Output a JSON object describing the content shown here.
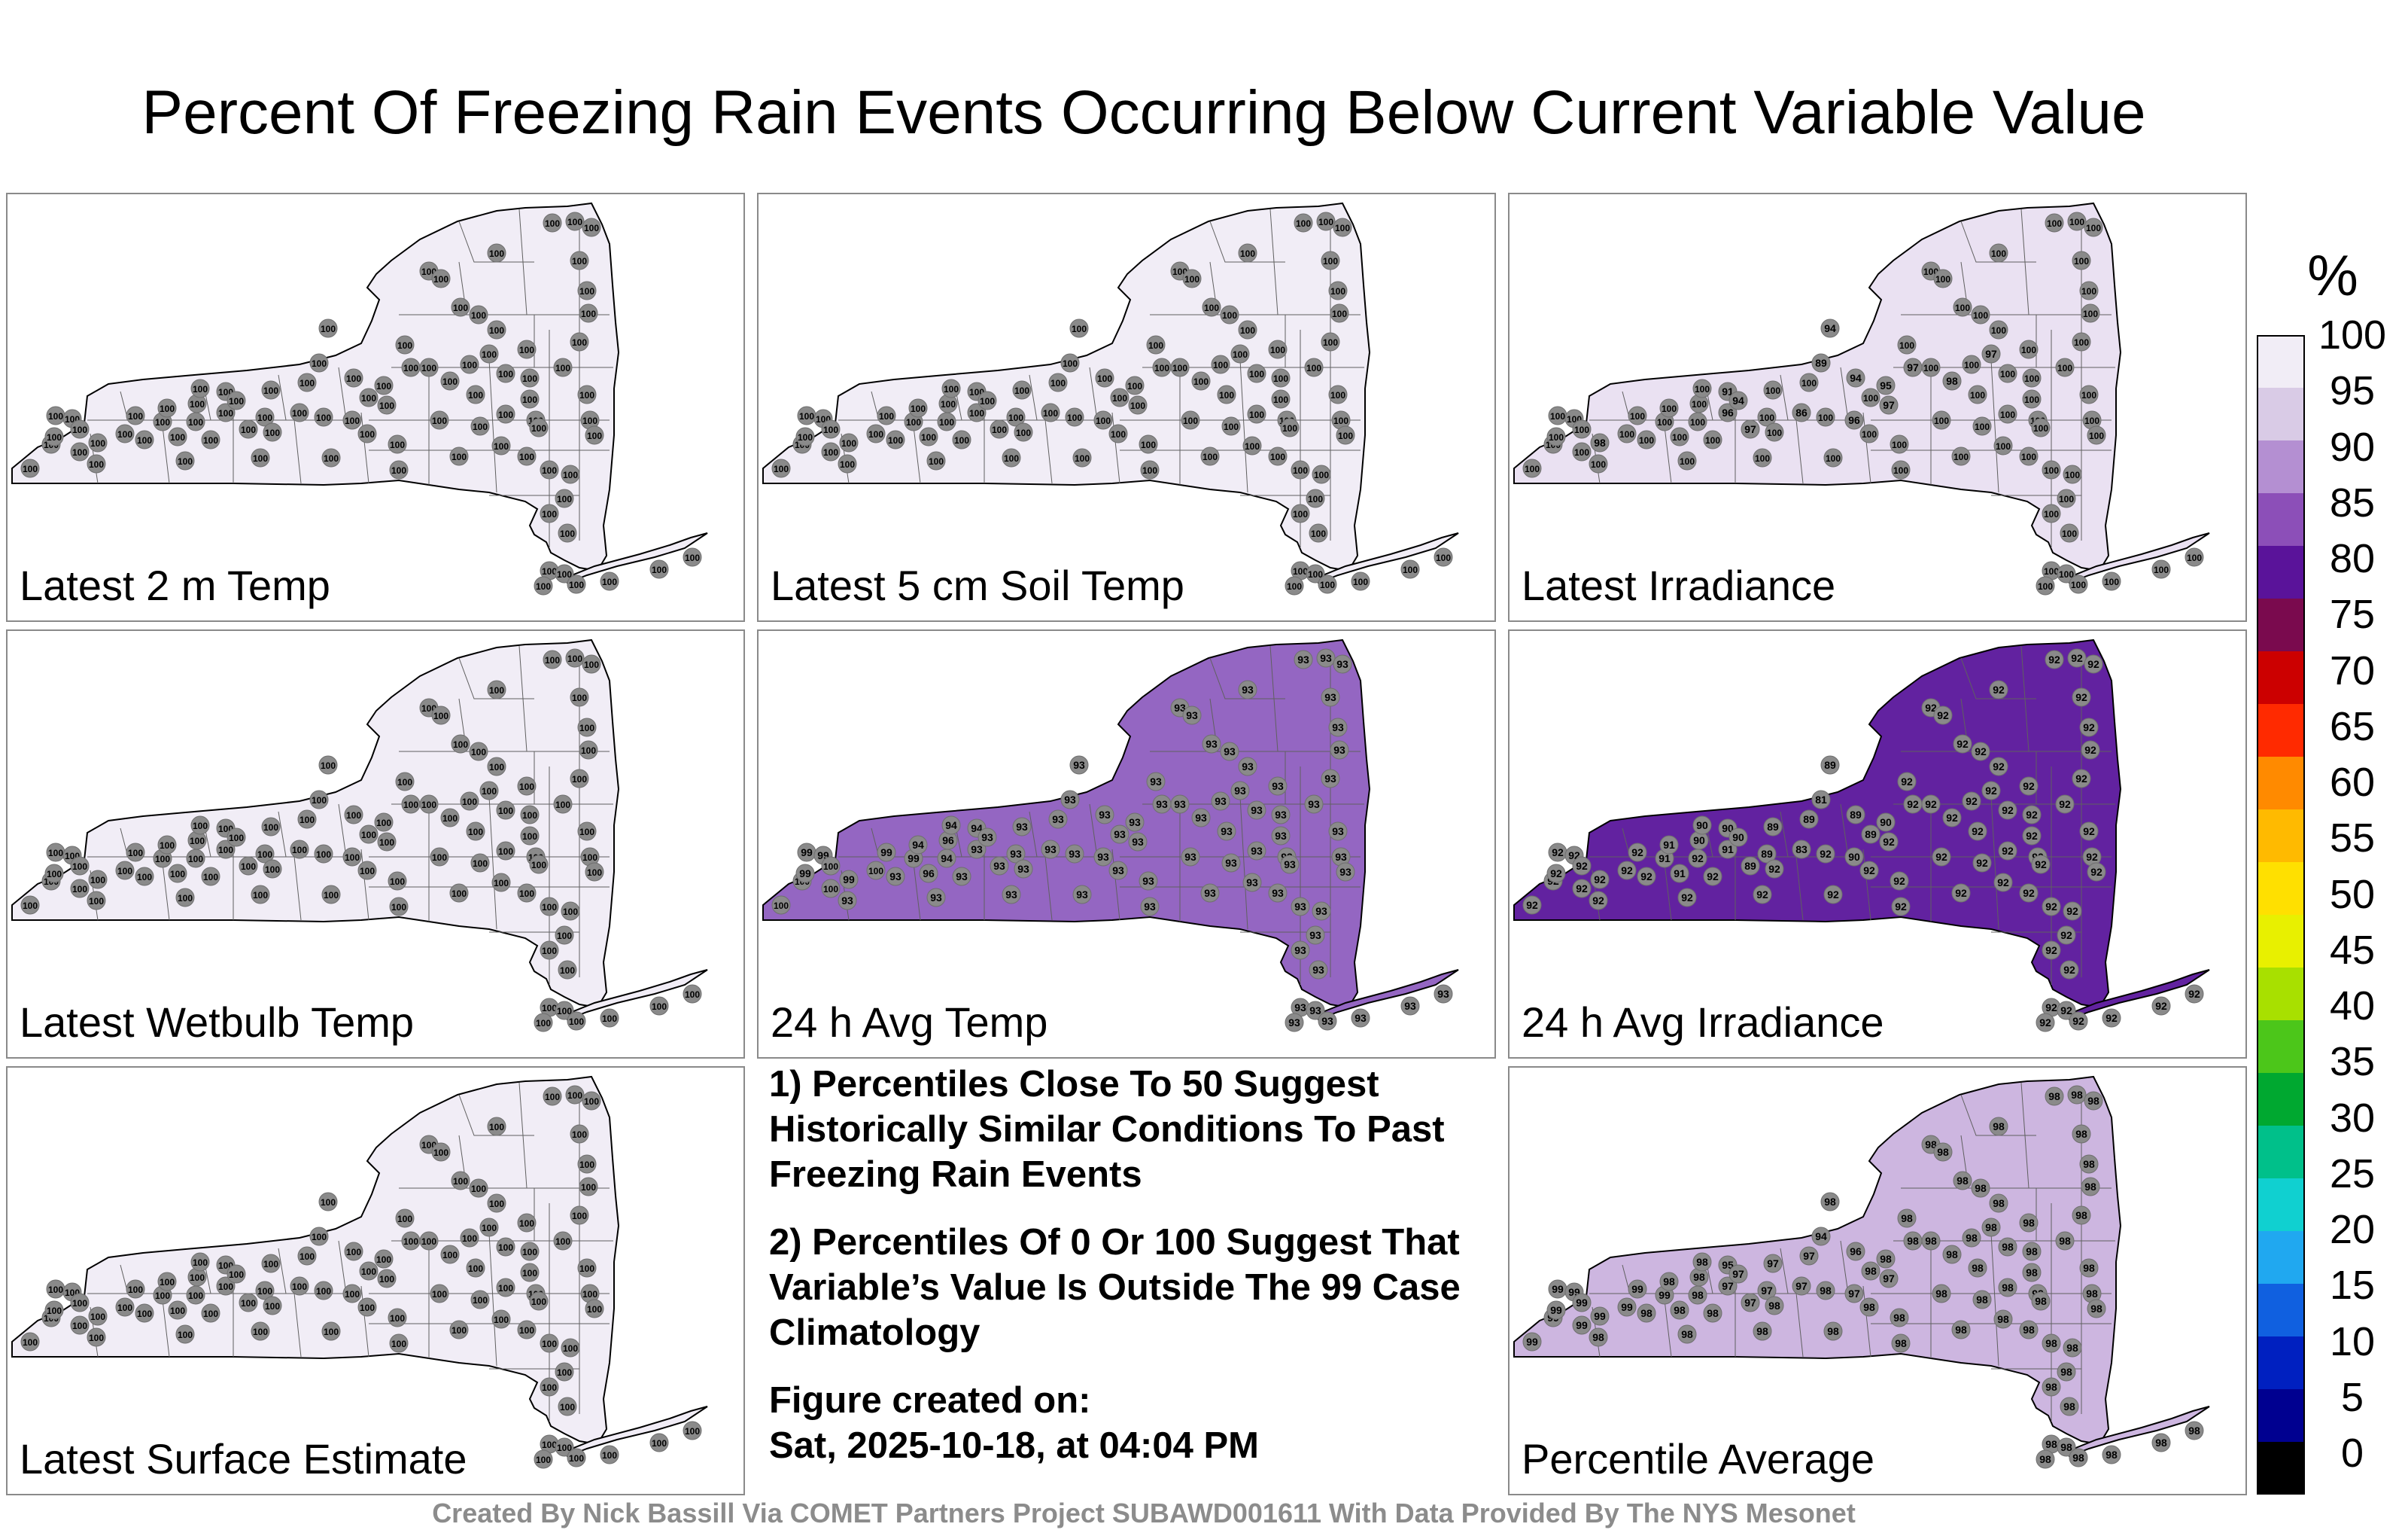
{
  "title": "Percent Of Freezing Rain Events Occurring Below Current Variable Value",
  "footer": "Created By Nick Bassill Via COMET Partners Project SUBAWD001611 With Data Provided By The NYS Mesonet",
  "colorbar": {
    "unit": "%",
    "ticks": [
      "100",
      "95",
      "90",
      "85",
      "80",
      "75",
      "70",
      "65",
      "60",
      "55",
      "50",
      "45",
      "40",
      "35",
      "30",
      "25",
      "20",
      "15",
      "10",
      "5",
      "0"
    ],
    "stops": [
      "#f1edf6",
      "#d9cbe6",
      "#b48fd2",
      "#8c4fb8",
      "#5a139a",
      "#7a0a4e",
      "#cc0000",
      "#ff2a00",
      "#ff8a00",
      "#ffba00",
      "#ffe000",
      "#e8f000",
      "#a8e000",
      "#4cc61a",
      "#00a830",
      "#00c08a",
      "#10d0d0",
      "#20a8f0",
      "#1060e0",
      "#0020c0",
      "#000090",
      "#000000"
    ]
  },
  "panels": [
    {
      "id": "latest-2m-temp",
      "label": "Latest 2 m Temp",
      "base": "#f1edf6",
      "default": "100",
      "overrides": {}
    },
    {
      "id": "latest-5cm-soil-temp",
      "label": "Latest 5 cm Soil Temp",
      "base": "#f1edf6",
      "default": "100",
      "overrides": {}
    },
    {
      "id": "latest-irradiance",
      "label": "Latest Irradiance",
      "base": "#eae1f2",
      "default": "100",
      "overrides": {
        "7": "98",
        "16": "91",
        "17": "96",
        "18": "94",
        "19": "97",
        "22": "86",
        "24": "89",
        "25": "94",
        "26": "94",
        "27": "96",
        "29": "95",
        "30": "97",
        "31": "97",
        "34": "98",
        "37": "97"
      }
    },
    {
      "id": "latest-wetbulb-temp",
      "label": "Latest Wetbulb Temp",
      "base": "#f1edf6",
      "default": "100",
      "overrides": {}
    },
    {
      "id": "avg-24h-temp",
      "label": "24 h Avg Temp",
      "base": "#9466c2",
      "default": "93",
      "overrides": {
        "0": "100",
        "1": "100",
        "2": "99",
        "3": "99",
        "4": "99",
        "5": "100",
        "6": "100",
        "7": "99",
        "8": "100",
        "9": "99",
        "10": "99",
        "11": "94",
        "12": "96",
        "13": "94",
        "14": "96",
        "15": "94",
        "16": "94"
      }
    },
    {
      "id": "avg-24h-irradiance",
      "label": "24 h Avg Irradiance",
      "base": "#6222a0",
      "default": "92",
      "overrides": {
        "10": "91",
        "11": "91",
        "12": "91",
        "14": "90",
        "15": "90",
        "16": "90",
        "17": "91",
        "18": "90",
        "19": "89",
        "20": "89",
        "21": "89",
        "22": "83",
        "23": "89",
        "24": "81",
        "25": "89",
        "26": "89",
        "27": "90",
        "28": "89",
        "29": "90"
      }
    },
    {
      "id": "latest-surface-estimate",
      "label": "Latest Surface Estimate",
      "base": "#f1edf6",
      "default": "100",
      "overrides": {}
    },
    {
      "id": "percentile-average",
      "label": "Percentile Average",
      "base": "#cdb6e0",
      "default": "98",
      "overrides": {
        "0": "99",
        "1": "99",
        "2": "99",
        "3": "99",
        "4": "99",
        "5": "99",
        "6": "99",
        "7": "99",
        "8": "99",
        "9": "99",
        "10": "99",
        "16": "95",
        "17": "97",
        "18": "97",
        "19": "97",
        "20": "97",
        "21": "97",
        "22": "97",
        "23": "97",
        "24": "94",
        "26": "96",
        "27": "97",
        "30": "97"
      }
    }
  ],
  "notes": {
    "note1": "1) Percentiles Close To 50 Suggest Historically Similar Conditions To Past Freezing Rain Events",
    "note2": "2) Percentiles Of 0 Or 100 Suggest That Variable’s Value Is Outside The 99 Case Climatology",
    "created_label": "Figure created on:",
    "created_date": "Sat, 2025-10-18, at 04:04 PM"
  }
}
